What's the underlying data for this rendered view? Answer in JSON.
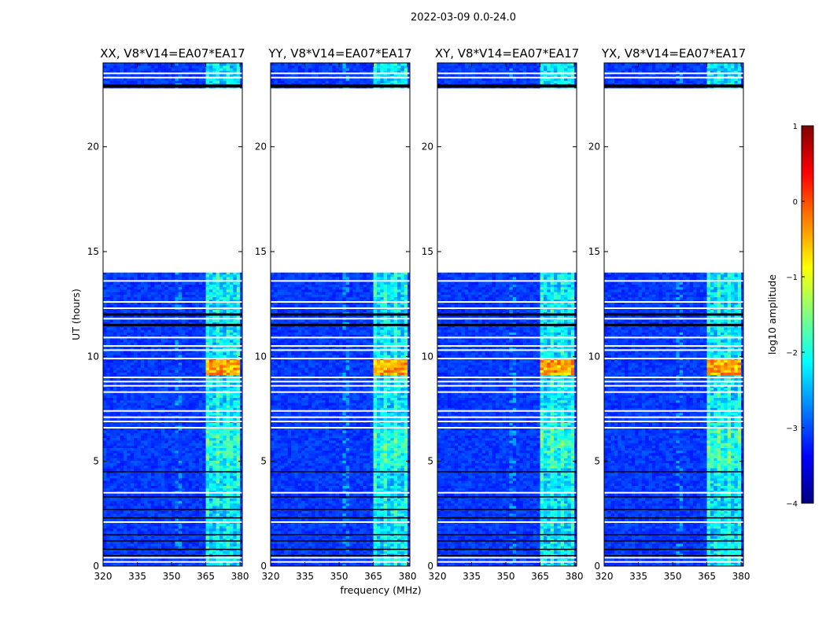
{
  "figure": {
    "suptitle": "2022-03-09 0.0-24.0"
  },
  "chart_data": {
    "type": "heatmap",
    "xlabel": "frequency (MHz)",
    "ylabel": "UT (hours)",
    "xlim": [
      320,
      381
    ],
    "ylim": [
      0,
      24
    ],
    "x_ticks": [
      320,
      335,
      350,
      365,
      380
    ],
    "y_ticks": [
      0,
      5,
      10,
      15,
      20
    ],
    "panels": [
      {
        "title": "XX, V8*V14=EA07*EA17",
        "pol": "XX"
      },
      {
        "title": "YY, V8*V14=EA07*EA17",
        "pol": "YY"
      },
      {
        "title": "XY, V8*V14=EA07*EA17",
        "pol": "XY"
      },
      {
        "title": "YX, V8*V14=EA07*EA17",
        "pol": "YX"
      }
    ],
    "colorbar": {
      "label": "log10 amplitude",
      "range": [
        -4,
        1
      ],
      "ticks": [
        -4,
        -3,
        -2,
        -1,
        0,
        1
      ],
      "tick_labels": [
        "−4",
        "−3",
        "−2",
        "−1",
        "0",
        "1"
      ],
      "colormap": "jet"
    },
    "no_data_ranges_hours": [
      [
        14.0,
        22.8
      ]
    ],
    "rfi_band_mhz": [
      364,
      379
    ],
    "bright_block": {
      "ut_hours": [
        9.1,
        9.8
      ],
      "peak_log10": -0.3
    },
    "background_log10": -3.1,
    "rfi_level_log10": -2.0,
    "black_flag_rows_hours": [
      22.9,
      12.0,
      11.5,
      4.5,
      3.3,
      2.7,
      2.3,
      1.5,
      1.2,
      0.8,
      0.5
    ],
    "white_gap_rows_hours": [
      23.3,
      23.5,
      13.6,
      12.6,
      12.3,
      11.8,
      10.9,
      10.5,
      10.3,
      9.9,
      9.0,
      8.8,
      8.6,
      8.3,
      7.4,
      7.1,
      6.9,
      6.6,
      3.5,
      2.1,
      0.4,
      0.2
    ]
  }
}
